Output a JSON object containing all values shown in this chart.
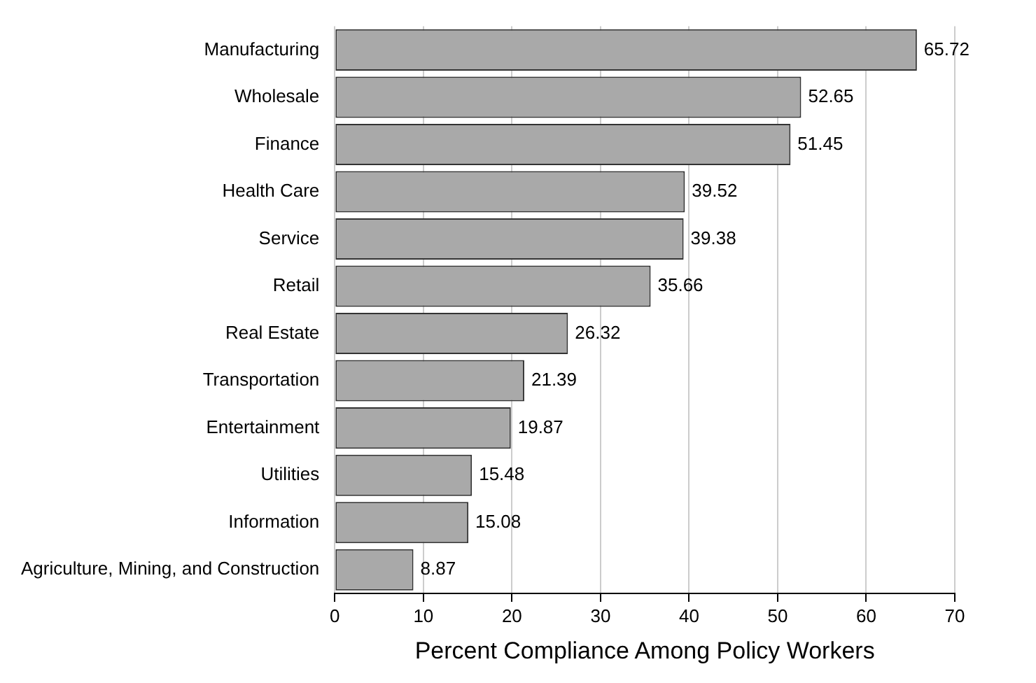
{
  "chart_data": {
    "type": "bar",
    "orientation": "horizontal",
    "xlabel": "Percent Compliance Among Policy Workers",
    "categories": [
      "Manufacturing",
      "Wholesale",
      "Finance",
      "Health Care",
      "Service",
      "Retail",
      "Real Estate",
      "Transportation",
      "Entertainment",
      "Utilities",
      "Information",
      "Agriculture, Mining, and Construction"
    ],
    "values": [
      65.72,
      52.65,
      51.45,
      39.52,
      39.38,
      35.66,
      26.32,
      21.39,
      19.87,
      15.48,
      15.08,
      8.87
    ],
    "color": "#a9a9a9",
    "xlim": [
      0,
      70
    ],
    "xticks": [
      0,
      10,
      20,
      30,
      40,
      50,
      60,
      70
    ],
    "grid": "x",
    "data_labels": true,
    "legend": false
  }
}
